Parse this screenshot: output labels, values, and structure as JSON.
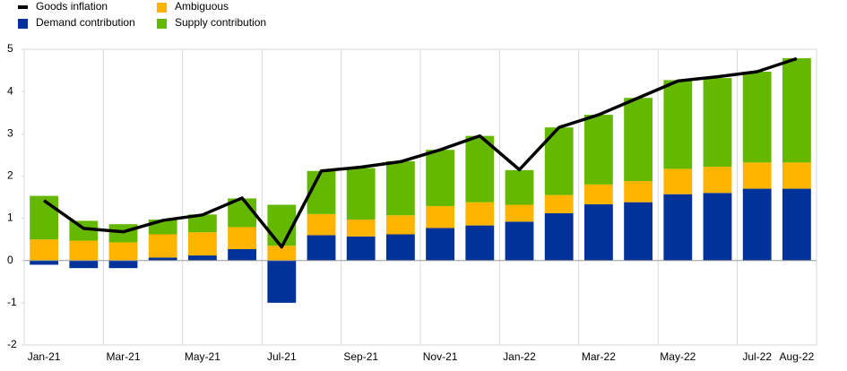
{
  "chart_data": {
    "type": "bar",
    "stacked": true,
    "categories": [
      "Jan-21",
      null,
      "Mar-21",
      null,
      "May-21",
      null,
      "Jul-21",
      null,
      "Sep-21",
      null,
      "Nov-21",
      null,
      "Jan-22",
      null,
      "Mar-22",
      null,
      "May-22",
      null,
      "Jul-22",
      "Aug-22"
    ],
    "series": [
      {
        "name": "Goods inflation",
        "type": "line",
        "color": "#000000",
        "values": [
          1.42,
          0.76,
          0.68,
          0.95,
          1.08,
          1.48,
          0.32,
          2.12,
          2.21,
          2.34,
          2.62,
          2.95,
          2.15,
          3.15,
          3.45,
          3.85,
          4.25,
          4.35,
          4.47,
          4.78
        ]
      },
      {
        "name": "Demand contribution",
        "type": "bar",
        "color": "#003299",
        "values": [
          -0.1,
          -0.18,
          -0.18,
          0.07,
          0.12,
          0.27,
          -1.0,
          0.6,
          0.57,
          0.62,
          0.77,
          0.83,
          0.92,
          1.12,
          1.33,
          1.38,
          1.57,
          1.6,
          1.7,
          1.7
        ]
      },
      {
        "name": "Ambiguous",
        "type": "bar",
        "color": "#ffb400",
        "values": [
          0.5,
          0.47,
          0.43,
          0.55,
          0.55,
          0.52,
          0.35,
          0.5,
          0.4,
          0.45,
          0.52,
          0.55,
          0.4,
          0.43,
          0.47,
          0.5,
          0.6,
          0.62,
          0.62,
          0.62
        ]
      },
      {
        "name": "Supply contribution",
        "type": "bar",
        "color": "#65b800",
        "values": [
          1.03,
          0.47,
          0.43,
          0.35,
          0.42,
          0.68,
          0.97,
          1.02,
          1.22,
          1.28,
          1.33,
          1.57,
          0.82,
          1.6,
          1.65,
          1.97,
          2.1,
          2.1,
          2.15,
          2.47
        ]
      }
    ],
    "ylim": [
      -2,
      5
    ],
    "yticks": [
      -2,
      -1,
      0,
      1,
      2,
      3,
      4,
      5
    ]
  }
}
